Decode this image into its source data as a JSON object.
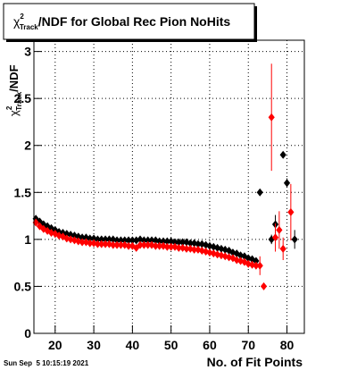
{
  "chart_data": {
    "type": "scatter",
    "title": {
      "symbol": "χ",
      "sup": "2",
      "sub": "Track",
      "text": "/NDF for Global Rec Pion NoHits"
    },
    "ylabel": {
      "symbol": "χ",
      "sup": "2",
      "sub": "Track",
      "text": "/NDF"
    },
    "xlabel": "No. of Fit Points",
    "timestamp": "Sun Sep  5 10:15:19 2021",
    "xlim": [
      14.5,
      84.5
    ],
    "ylim": [
      0,
      3.12
    ],
    "xticks": [
      20,
      30,
      40,
      50,
      60,
      70,
      80
    ],
    "yticks": [
      0,
      0.5,
      1,
      1.5,
      2,
      2.5,
      3
    ],
    "grid": true,
    "series": [
      {
        "color": "#000000",
        "x": [
          15,
          16,
          17,
          18,
          19,
          20,
          21,
          22,
          23,
          24,
          25,
          26,
          27,
          28,
          29,
          30,
          31,
          32,
          33,
          34,
          35,
          36,
          37,
          38,
          39,
          40,
          41,
          42,
          43,
          44,
          45,
          46,
          47,
          48,
          49,
          50,
          51,
          52,
          53,
          54,
          55,
          56,
          57,
          58,
          59,
          60,
          61,
          62,
          63,
          64,
          65,
          66,
          67,
          68,
          69,
          70,
          71,
          72
        ],
        "values": [
          1.22,
          1.19,
          1.16,
          1.14,
          1.12,
          1.1,
          1.08,
          1.07,
          1.06,
          1.05,
          1.04,
          1.03,
          1.02,
          1.02,
          1.01,
          1.01,
          1.0,
          1.0,
          1.0,
          1.0,
          1.0,
          0.99,
          0.99,
          0.99,
          0.99,
          0.99,
          0.99,
          1.0,
          0.99,
          0.99,
          0.99,
          0.99,
          0.98,
          0.98,
          0.98,
          0.98,
          0.97,
          0.97,
          0.97,
          0.97,
          0.96,
          0.96,
          0.95,
          0.95,
          0.94,
          0.93,
          0.92,
          0.91,
          0.9,
          0.89,
          0.88,
          0.86,
          0.85,
          0.83,
          0.82,
          0.8,
          0.79,
          0.77
        ]
      },
      {
        "color": "#ff0000",
        "x": [
          15,
          16,
          17,
          18,
          19,
          20,
          21,
          22,
          23,
          24,
          25,
          26,
          27,
          28,
          29,
          30,
          31,
          32,
          33,
          34,
          35,
          36,
          37,
          38,
          39,
          40,
          41,
          42,
          43,
          44,
          45,
          46,
          47,
          48,
          49,
          50,
          51,
          52,
          53,
          54,
          55,
          56,
          57,
          58,
          59,
          60,
          61,
          62,
          63,
          64,
          65,
          66,
          67,
          68,
          69,
          70,
          71,
          72
        ],
        "values": [
          1.18,
          1.14,
          1.11,
          1.09,
          1.07,
          1.06,
          1.04,
          1.03,
          1.01,
          1.0,
          0.99,
          0.98,
          0.97,
          0.97,
          0.96,
          0.96,
          0.95,
          0.95,
          0.95,
          0.95,
          0.94,
          0.94,
          0.94,
          0.94,
          0.93,
          0.93,
          0.91,
          0.94,
          0.94,
          0.94,
          0.94,
          0.93,
          0.93,
          0.93,
          0.92,
          0.92,
          0.92,
          0.91,
          0.91,
          0.9,
          0.9,
          0.89,
          0.89,
          0.88,
          0.87,
          0.86,
          0.85,
          0.84,
          0.83,
          0.82,
          0.81,
          0.8,
          0.78,
          0.77,
          0.76,
          0.74,
          0.73,
          0.72
        ]
      },
      {
        "color": "#000000",
        "x": [
          73,
          76,
          77,
          79,
          80,
          82
        ],
        "values": [
          1.5,
          1.0,
          1.16,
          1.9,
          1.6,
          1.0
        ],
        "errors": [
          0.02,
          0.05,
          0.1,
          0.03,
          0.05,
          0.1
        ]
      },
      {
        "color": "#ff0000",
        "x": [
          73,
          74,
          76,
          77,
          78,
          79,
          81
        ],
        "values": [
          0.72,
          0.5,
          2.3,
          1.02,
          1.1,
          0.9,
          1.29
        ],
        "errors": [
          0.1,
          0.02,
          0.57,
          0.15,
          0.2,
          0.12,
          0.3
        ]
      }
    ]
  }
}
